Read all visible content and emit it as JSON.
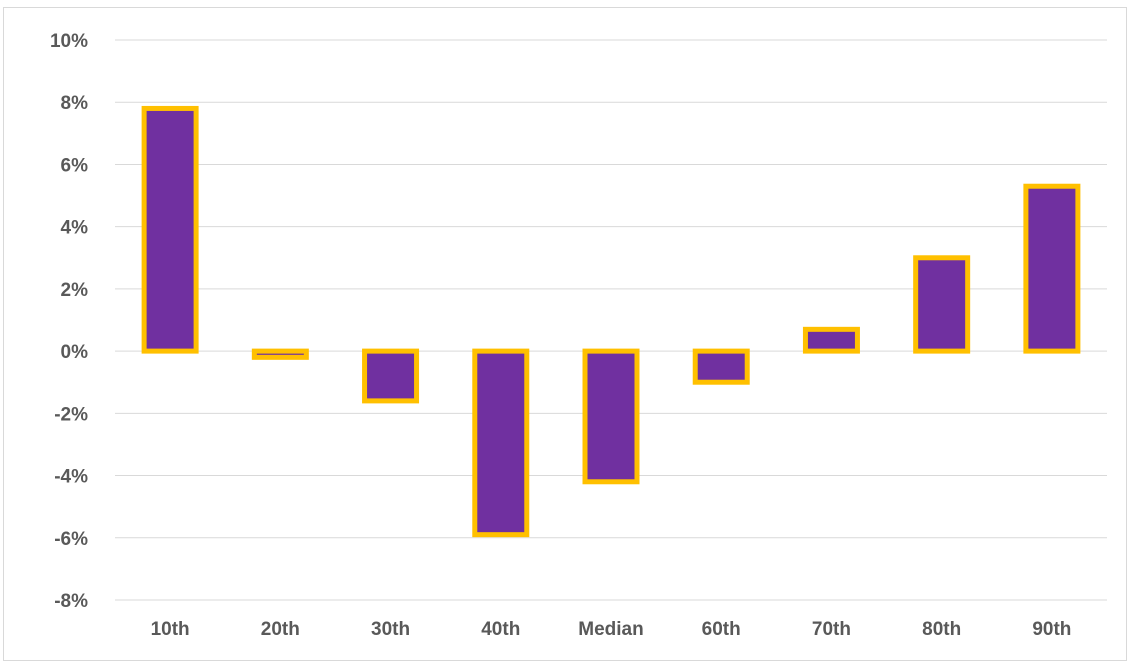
{
  "chart_data": {
    "type": "bar",
    "title": "",
    "xlabel": "",
    "ylabel": "",
    "categories": [
      "10th",
      "20th",
      "30th",
      "40th",
      "Median",
      "60th",
      "70th",
      "80th",
      "90th"
    ],
    "values": [
      7.8,
      -0.2,
      -1.6,
      -5.9,
      -4.2,
      -1.0,
      0.7,
      3.0,
      5.3
    ],
    "ylim": [
      -8,
      10
    ],
    "y_ticks": [
      10,
      8,
      6,
      4,
      2,
      0,
      -2,
      -4,
      -6,
      -8
    ],
    "y_tick_format": "percent",
    "grid": true,
    "legend": "none",
    "colors": {
      "bar_fill": "#7030a0",
      "bar_border": "#ffc000",
      "gridline": "#d9d9d9",
      "tick_text": "#595959"
    }
  }
}
